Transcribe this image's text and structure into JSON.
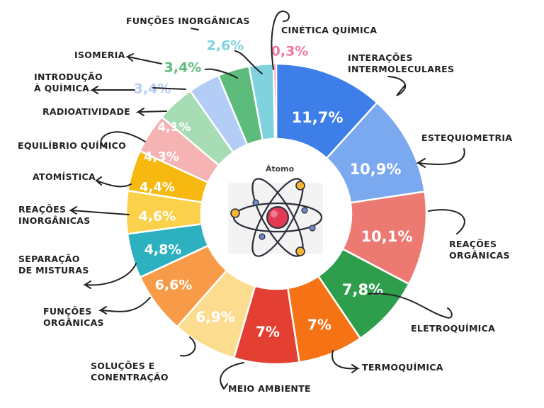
{
  "chart_data": {
    "type": "pie",
    "center_label": "Átomo",
    "slices": [
      {
        "label": "INTERAÇÕES INTERMOLECULARES",
        "value": 11.7,
        "value_text": "11,7%",
        "color": "#3d7ee8"
      },
      {
        "label": "ESTEQUIOMETRIA",
        "value": 10.9,
        "value_text": "10,9%",
        "color": "#7aa9f0"
      },
      {
        "label": "REAÇÕES ORGÂNICAS",
        "value": 10.1,
        "value_text": "10,1%",
        "color": "#ec7a72"
      },
      {
        "label": "ELETROQUÍMICA",
        "value": 7.8,
        "value_text": "7,8%",
        "color": "#2e9e4c"
      },
      {
        "label": "TERMOQUÍMICA",
        "value": 7.0,
        "value_text": "7%",
        "color": "#f57314"
      },
      {
        "label": "MEIO AMBIENTE",
        "value": 7.0,
        "value_text": "7%",
        "color": "#e33f33"
      },
      {
        "label": "SOLUÇÕES E CONENTRAÇÃO",
        "value": 6.9,
        "value_text": "6,9%",
        "color": "#fcdc8e"
      },
      {
        "label": "FUNÇÕES ORGÂNICAS",
        "value": 6.6,
        "value_text": "6,6%",
        "color": "#f89b48"
      },
      {
        "label": "SEPARAÇÃO DE MISTURAS",
        "value": 4.8,
        "value_text": "4,8%",
        "color": "#2db0bf"
      },
      {
        "label": "REAÇÕES INORGÂNICAS",
        "value": 4.6,
        "value_text": "4,6%",
        "color": "#fbd04a"
      },
      {
        "label": "ATOMÍSTICA",
        "value": 4.4,
        "value_text": "4,4%",
        "color": "#f7b90f"
      },
      {
        "label": "EQUILÍBRIO QUÍMICO",
        "value": 4.3,
        "value_text": "4,3%",
        "color": "#f6b3b3"
      },
      {
        "label": "RADIOATIVIDADE",
        "value": 4.1,
        "value_text": "4,1%",
        "color": "#a7dcb4"
      },
      {
        "label": "INTRODUÇÃO À QUÍMICA",
        "value": 3.4,
        "value_text": "3,4%",
        "color": "#b4cdf6"
      },
      {
        "label": "ISOMERIA",
        "value": 3.4,
        "value_text": "3,4%",
        "color": "#5dbb7b"
      },
      {
        "label": "FUNÇÕES INORGÂNICAS",
        "value": 2.6,
        "value_text": "2,6%",
        "color": "#7fd2de"
      },
      {
        "label": "CINÉTICA QUÍMICA",
        "value": 0.3,
        "value_text": "0,3%",
        "color": "#f07aa5"
      }
    ]
  }
}
